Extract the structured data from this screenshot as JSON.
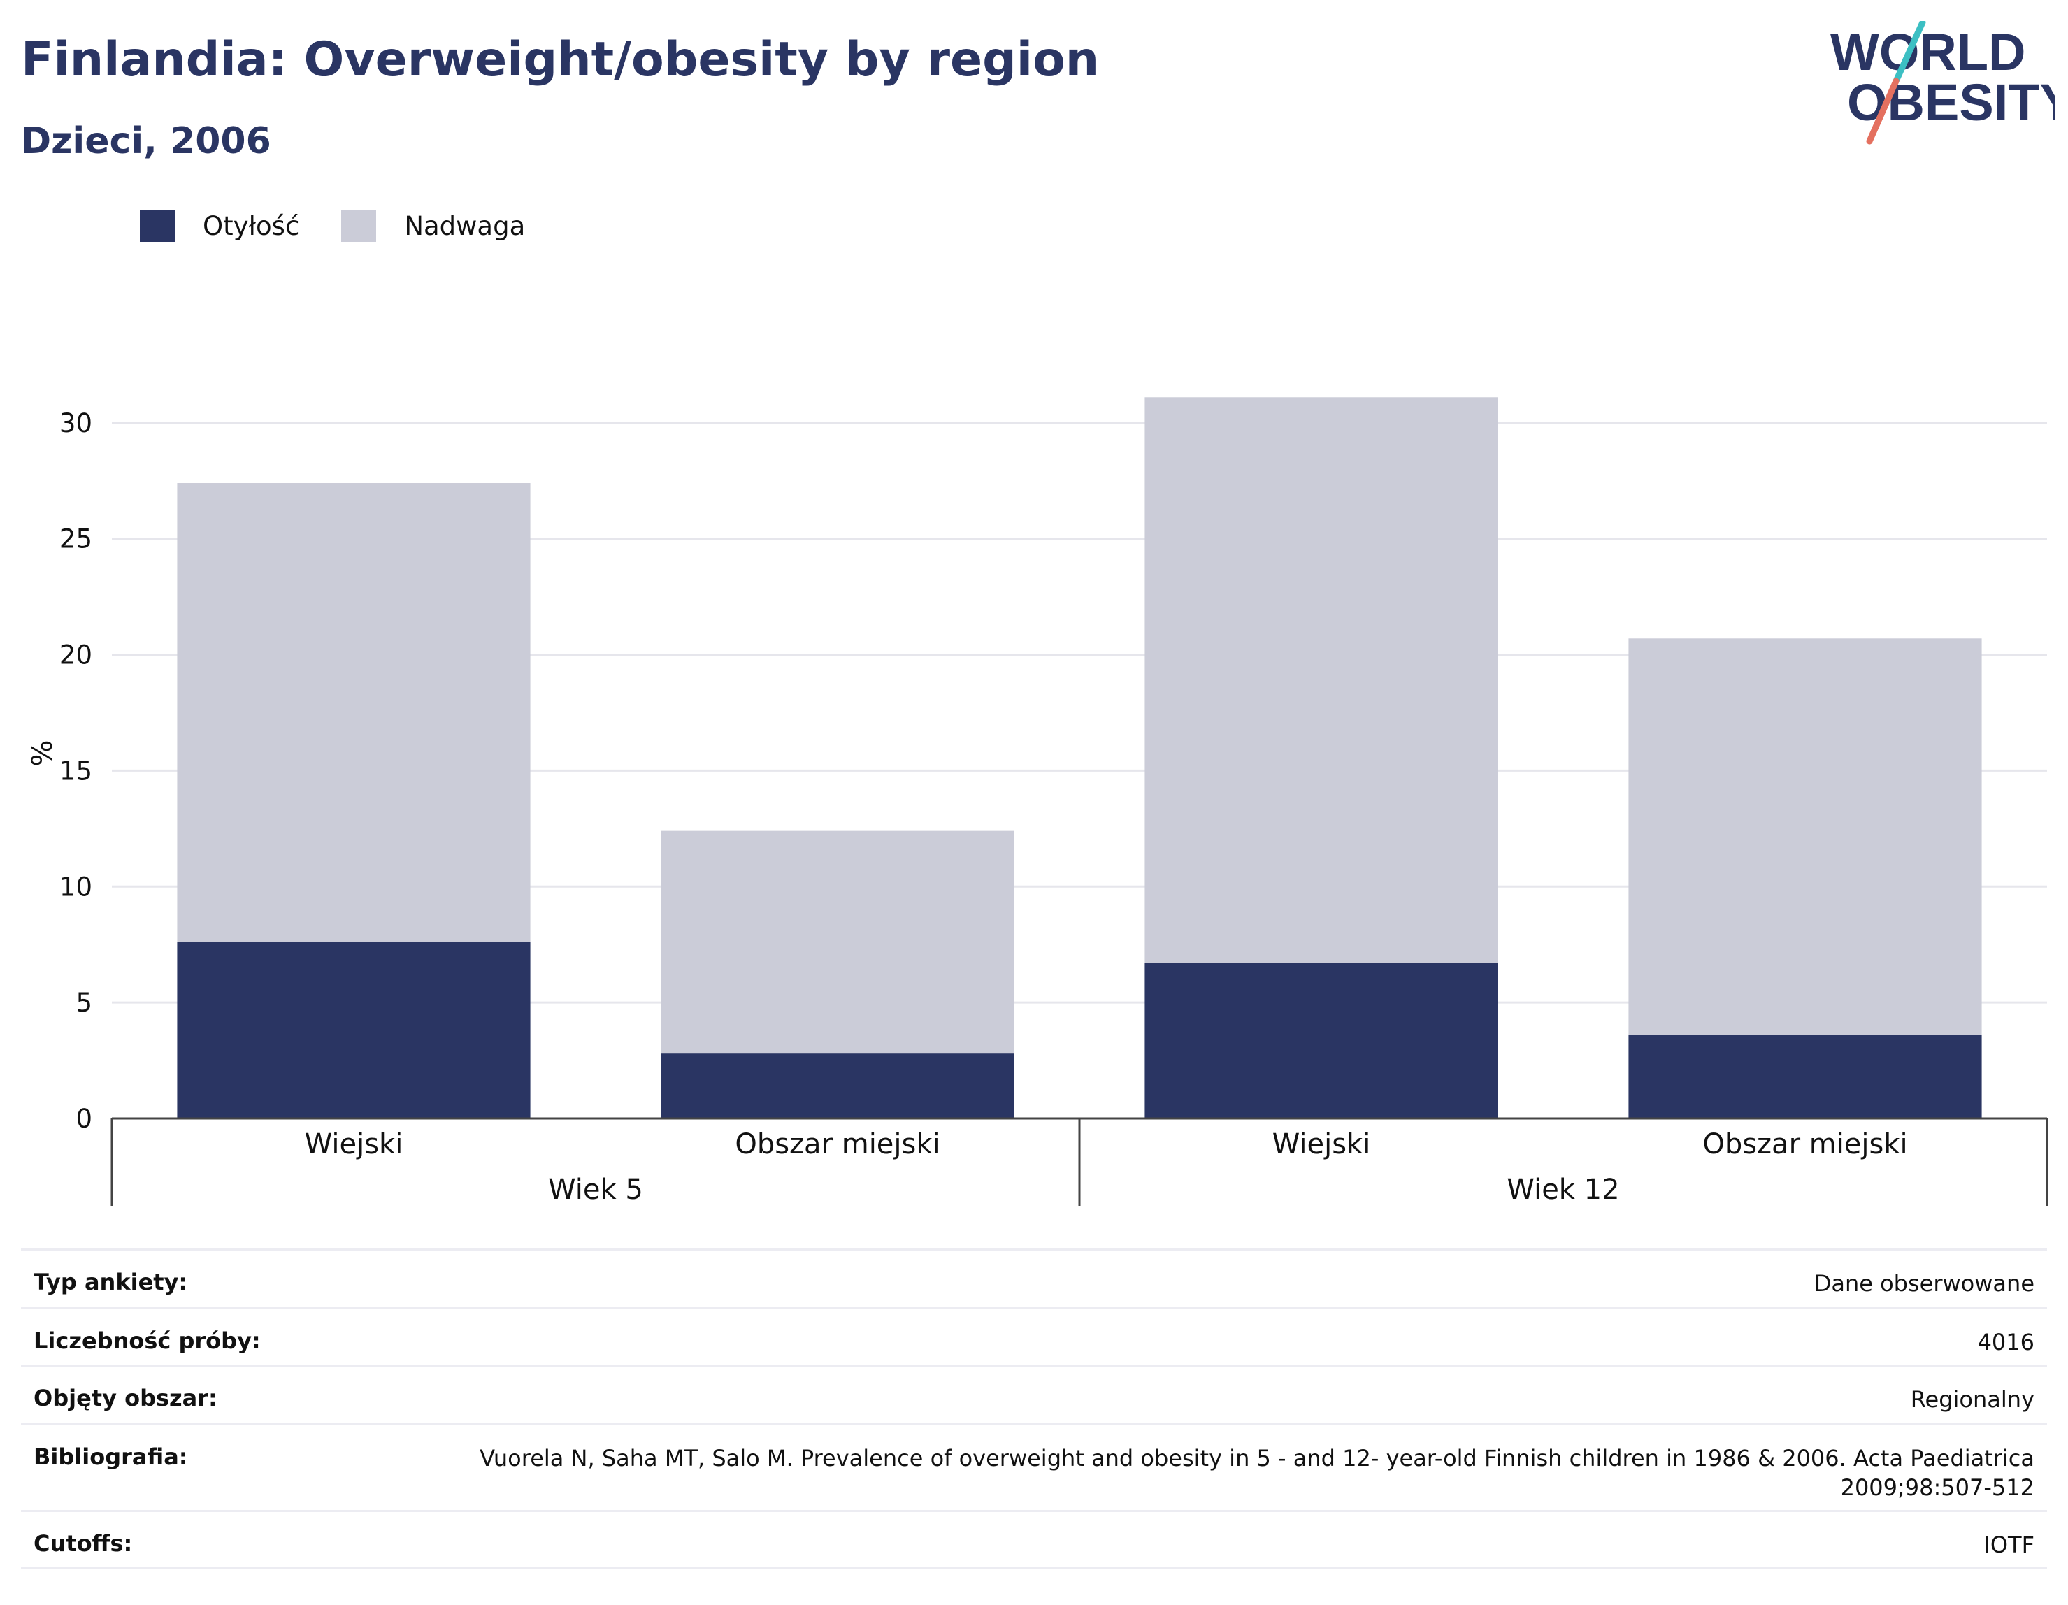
{
  "header": {
    "title": "Finlandia: Overweight/obesity by region",
    "subtitle": "Dzieci, 2006"
  },
  "logo": {
    "line1": "WORLD",
    "line2": "OBESITY",
    "accent_teal": "#3cbfc3",
    "accent_coral": "#e4705f"
  },
  "colors": {
    "obesity": "#2a3563",
    "overweight": "#cbccd8",
    "grid": "#e6e6ec",
    "axis": "#444444"
  },
  "chart_data": {
    "type": "bar",
    "stacked": true,
    "ylabel": "%",
    "ylim": [
      0,
      31.5
    ],
    "yticks": [
      0,
      5,
      10,
      15,
      20,
      25,
      30
    ],
    "grid": true,
    "legend_position": "top-left",
    "groups": [
      {
        "label": "Wiek 5",
        "categories": [
          "Wiejski",
          "Obszar miejski"
        ]
      },
      {
        "label": "Wiek 12",
        "categories": [
          "Wiejski",
          "Obszar miejski"
        ]
      }
    ],
    "categories": [
      "Wiejski",
      "Obszar miejski",
      "Wiejski",
      "Obszar miejski"
    ],
    "series": [
      {
        "name": "Otyłość",
        "values": [
          7.6,
          2.8,
          6.7,
          3.6
        ]
      },
      {
        "name": "Nadwaga",
        "values": [
          19.8,
          9.6,
          24.4,
          17.1
        ]
      }
    ]
  },
  "info": [
    {
      "key": "Typ ankiety:",
      "value": "Dane obserwowane"
    },
    {
      "key": "Liczebność próby:",
      "value": "4016"
    },
    {
      "key": "Objęty obszar:",
      "value": "Regionalny"
    },
    {
      "key": "Bibliografia:",
      "value": "Vuorela N, Saha MT, Salo M. Prevalence of overweight and obesity in 5 - and 12- year-old Finnish children in 1986 & 2006. Acta Paediatrica 2009;98:507-512"
    },
    {
      "key": "Cutoffs:",
      "value": "IOTF"
    }
  ]
}
